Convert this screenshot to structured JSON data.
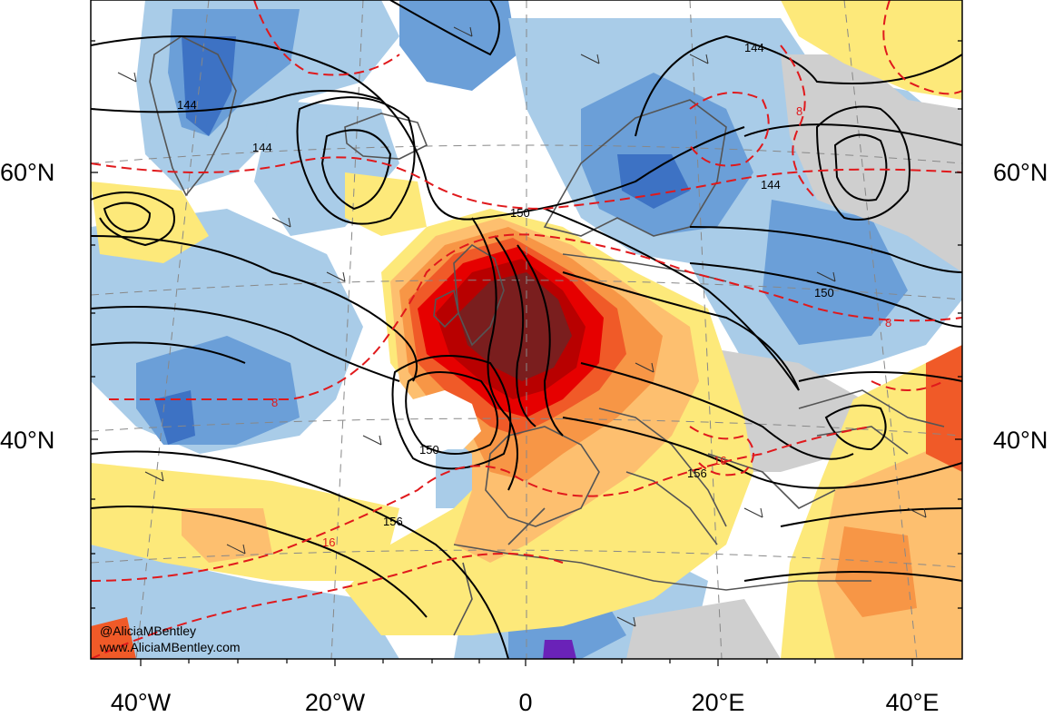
{
  "map": {
    "colors": {
      "deep_red": "#7a1e1e",
      "dark_red": "#b80000",
      "red": "#e60000",
      "red_orange": "#f05a28",
      "orange": "#f79646",
      "light_orange": "#fdbf6f",
      "yellow": "#fde97a",
      "white": "#ffffff",
      "gray": "#cfcfcf",
      "light_blue": "#a9cce8",
      "blue": "#6b9fd8",
      "mid_blue": "#3d72c4",
      "dark_blue": "#1f3fa6",
      "purple": "#6a22b8",
      "contour_black": "#000000",
      "contour_red_dashed": "#e0191c",
      "coastline": "#555555"
    },
    "lat_labels": [
      {
        "text": "60°N"
      },
      {
        "text": "40°N"
      }
    ],
    "lon_labels": [
      {
        "text": "40°W"
      },
      {
        "text": "20°W"
      },
      {
        "text": "0"
      },
      {
        "text": "20°E"
      },
      {
        "text": "40°E"
      }
    ],
    "contour_labels": [
      {
        "text": "144",
        "kind": "height"
      },
      {
        "text": "144",
        "kind": "height"
      },
      {
        "text": "144",
        "kind": "height"
      },
      {
        "text": "144",
        "kind": "height"
      },
      {
        "text": "150",
        "kind": "height"
      },
      {
        "text": "150",
        "kind": "height"
      },
      {
        "text": "150",
        "kind": "height"
      },
      {
        "text": "156",
        "kind": "height"
      },
      {
        "text": "156",
        "kind": "height"
      },
      {
        "text": "8",
        "kind": "temperature"
      },
      {
        "text": "8",
        "kind": "temperature"
      },
      {
        "text": "8",
        "kind": "temperature"
      },
      {
        "text": "16",
        "kind": "temperature"
      },
      {
        "text": "16",
        "kind": "temperature"
      }
    ],
    "credit": {
      "handle": "@AliciaMBentley",
      "site": "www.AliciaMBentley.com"
    }
  }
}
